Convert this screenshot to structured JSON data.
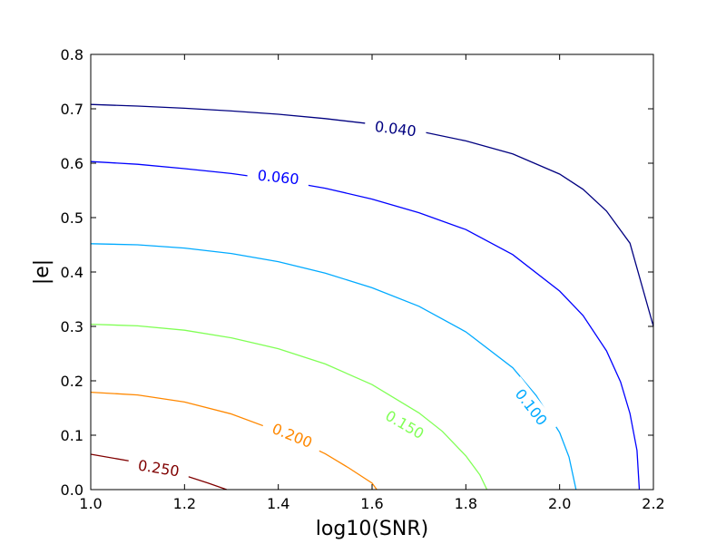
{
  "chart_data": {
    "type": "line",
    "xlabel": "log10(SNR)",
    "ylabel": "|e|",
    "xlim": [
      1.0,
      2.2
    ],
    "ylim": [
      0.0,
      0.8
    ],
    "xticks": [
      "1.0",
      "1.2",
      "1.4",
      "1.6",
      "1.8",
      "2.0",
      "2.2"
    ],
    "yticks": [
      "0.0",
      "0.1",
      "0.2",
      "0.3",
      "0.4",
      "0.5",
      "0.6",
      "0.7",
      "0.8"
    ],
    "grid": false,
    "series": [
      {
        "name": "0.040",
        "color": "#000080",
        "x": [
          1.0,
          1.1,
          1.2,
          1.3,
          1.4,
          1.5,
          1.6,
          1.7,
          1.8,
          1.9,
          2.0,
          2.05,
          2.1,
          2.15,
          2.2
        ],
        "y": [
          0.708,
          0.705,
          0.701,
          0.696,
          0.69,
          0.682,
          0.672,
          0.659,
          0.641,
          0.617,
          0.58,
          0.552,
          0.512,
          0.453,
          0.3
        ],
        "label_at": {
          "x": 1.65,
          "y": 0.664,
          "rot": 7
        }
      },
      {
        "name": "0.060",
        "color": "#0000ff",
        "x": [
          1.0,
          1.1,
          1.2,
          1.3,
          1.4,
          1.5,
          1.6,
          1.7,
          1.8,
          1.9,
          2.0,
          2.05,
          2.1,
          2.13,
          2.15,
          2.165,
          2.17
        ],
        "y": [
          0.603,
          0.598,
          0.59,
          0.581,
          0.569,
          0.554,
          0.534,
          0.509,
          0.478,
          0.432,
          0.365,
          0.32,
          0.255,
          0.198,
          0.14,
          0.072,
          0.0
        ],
        "label_at": {
          "x": 1.4,
          "y": 0.575,
          "rot": 6
        }
      },
      {
        "name": "0.100",
        "color": "#00aaff",
        "x": [
          1.0,
          1.1,
          1.2,
          1.3,
          1.4,
          1.5,
          1.6,
          1.7,
          1.8,
          1.9,
          1.95,
          2.0,
          2.02,
          2.035
        ],
        "y": [
          0.452,
          0.45,
          0.444,
          0.434,
          0.419,
          0.398,
          0.371,
          0.337,
          0.29,
          0.224,
          0.173,
          0.105,
          0.06,
          0.0
        ],
        "label_at": {
          "x": 1.94,
          "y": 0.152,
          "rot": 52
        }
      },
      {
        "name": "0.150",
        "color": "#80ff55",
        "x": [
          1.0,
          1.1,
          1.2,
          1.3,
          1.4,
          1.5,
          1.6,
          1.7,
          1.75,
          1.8,
          1.83,
          1.845
        ],
        "y": [
          0.304,
          0.301,
          0.293,
          0.279,
          0.259,
          0.231,
          0.193,
          0.141,
          0.107,
          0.062,
          0.027,
          0.0
        ],
        "label_at": {
          "x": 1.67,
          "y": 0.12,
          "rot": 30
        }
      },
      {
        "name": "0.200",
        "color": "#ff8800",
        "x": [
          1.0,
          1.1,
          1.2,
          1.3,
          1.4,
          1.5,
          1.55,
          1.6,
          1.61
        ],
        "y": [
          0.179,
          0.174,
          0.161,
          0.139,
          0.107,
          0.066,
          0.04,
          0.012,
          0.0
        ],
        "label_at": {
          "x": 1.43,
          "y": 0.1,
          "rot": 22
        }
      },
      {
        "name": "0.250",
        "color": "#800000",
        "x": [
          1.0,
          1.1,
          1.15,
          1.2,
          1.25,
          1.29
        ],
        "y": [
          0.065,
          0.05,
          0.039,
          0.026,
          0.012,
          0.0
        ],
        "label_at": {
          "x": 1.145,
          "y": 0.04,
          "rot": 9
        }
      }
    ]
  }
}
